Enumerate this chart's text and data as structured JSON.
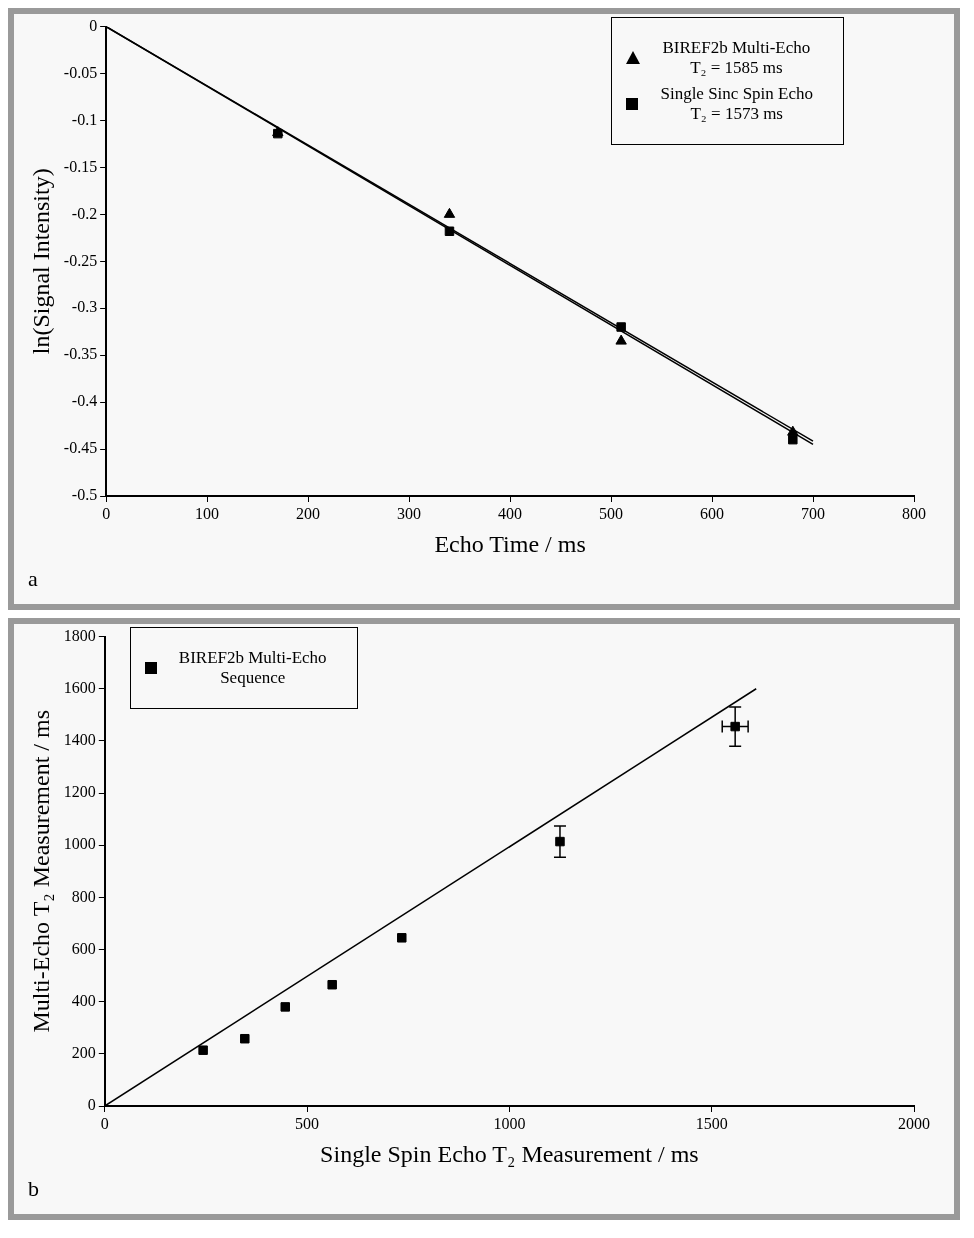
{
  "chart_data": [
    {
      "type": "scatter",
      "xlabel": "Echo Time / ms",
      "ylabel": "ln(Signal Intensity)",
      "xlim": [
        0,
        800
      ],
      "xticks": [
        0,
        100,
        200,
        300,
        400,
        500,
        600,
        700,
        800
      ],
      "ylim": [
        -0.5,
        0
      ],
      "yticks": [
        0,
        -0.05,
        -0.1,
        -0.15,
        -0.2,
        -0.25,
        -0.3,
        -0.35,
        -0.4,
        -0.45,
        -0.5
      ],
      "legend": "top right",
      "annotations": [
        "a"
      ],
      "series": [
        {
          "name": "BIREF2b Multi-Echo\nT₂ = 1585 ms",
          "color": "#000000",
          "marker": "triangle",
          "x": [
            170,
            340,
            510,
            680
          ],
          "values": [
            -0.113,
            -0.2,
            -0.335,
            -0.432
          ]
        },
        {
          "name": "Single Sinc Spin Echo\nT₂ = 1573 ms",
          "color": "#000000",
          "marker": "square",
          "x": [
            170,
            340,
            510,
            680
          ],
          "values": [
            -0.114,
            -0.218,
            -0.32,
            -0.44
          ]
        },
        {
          "type": "line",
          "color": "#000000",
          "x": [
            0,
            700
          ],
          "values": [
            0,
            -0.4416
          ]
        },
        {
          "type": "line",
          "color": "#000000",
          "x": [
            0,
            700
          ],
          "values": [
            0,
            -0.445
          ]
        }
      ]
    },
    {
      "type": "scatter",
      "xlabel": "Single Spin Echo T₂ Measurement / ms",
      "ylabel": "Multi-Echo T₂ Measurement / ms",
      "xlim": [
        0,
        2000
      ],
      "xticks": [
        0,
        500,
        1000,
        1500,
        2000
      ],
      "ylim": [
        0,
        1800
      ],
      "yticks": [
        0,
        200,
        400,
        600,
        800,
        1000,
        1200,
        1400,
        1600,
        1800
      ],
      "legend": "top left",
      "annotations": [
        "b"
      ],
      "series": [
        {
          "name": "BIREF2b Multi-Echo\nSequence",
          "color": "#000000",
          "marker": "square",
          "x": [
            243,
            346,
            446,
            562,
            734,
            1125,
            1558
          ],
          "values": [
            214,
            258,
            380,
            465,
            645,
            1014,
            1455
          ],
          "errors": [
            null,
            null,
            null,
            null,
            null,
            60,
            75
          ],
          "xerrors": [
            null,
            null,
            null,
            null,
            null,
            null,
            32
          ]
        },
        {
          "type": "line",
          "color": "#000000",
          "x": [
            0,
            1610
          ],
          "values": [
            0,
            1600
          ]
        }
      ]
    }
  ]
}
